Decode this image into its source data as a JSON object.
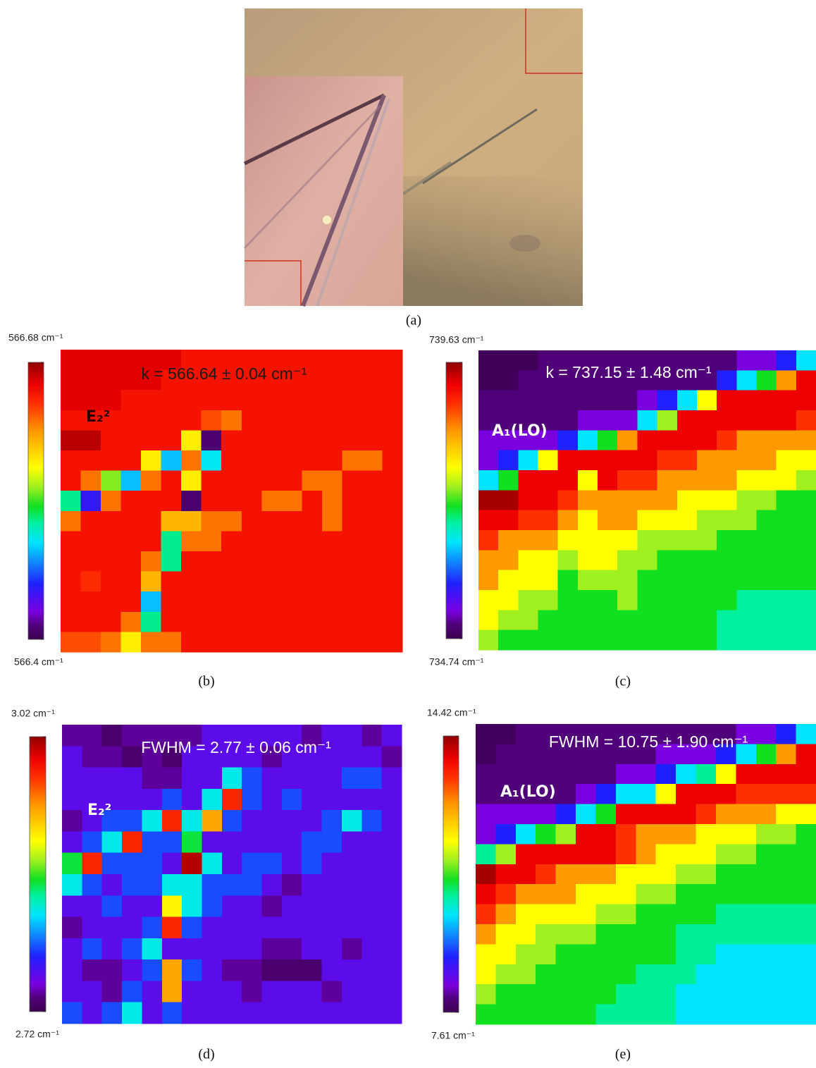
{
  "panels": [
    {
      "label": "(a)"
    },
    {
      "label": "(b)",
      "annotation": "k = 566.64 ± 0.04 cm⁻¹",
      "mode_label": "E₂²",
      "colorbar_ticks": [
        {
          "value": 566.4,
          "label": "566.4 cm⁻¹"
        },
        {
          "value": 566.68,
          "label": "566.68 cm⁻¹"
        }
      ],
      "values": [
        [
          566.66,
          566.66,
          566.66,
          566.66,
          566.66,
          566.66,
          566.65,
          566.65,
          566.65,
          566.65,
          566.65,
          566.65,
          566.65,
          566.65,
          566.65,
          566.65,
          566.65
        ],
        [
          566.66,
          566.66,
          566.66,
          566.66,
          566.66,
          566.65,
          566.65,
          566.65,
          566.65,
          566.65,
          566.65,
          566.65,
          566.65,
          566.65,
          566.65,
          566.65,
          566.65
        ],
        [
          566.66,
          566.66,
          566.66,
          566.65,
          566.65,
          566.65,
          566.65,
          566.65,
          566.65,
          566.65,
          566.65,
          566.65,
          566.65,
          566.65,
          566.65,
          566.65,
          566.65
        ],
        [
          566.65,
          566.65,
          566.65,
          566.65,
          566.65,
          566.65,
          566.65,
          566.63,
          566.62,
          566.65,
          566.65,
          566.65,
          566.65,
          566.65,
          566.65,
          566.65,
          566.65
        ],
        [
          566.67,
          566.67,
          566.65,
          566.65,
          566.65,
          566.65,
          566.58,
          566.41,
          566.65,
          566.65,
          566.65,
          566.65,
          566.65,
          566.65,
          566.65,
          566.65,
          566.65
        ],
        [
          566.65,
          566.65,
          566.65,
          566.65,
          566.58,
          566.49,
          566.62,
          566.5,
          566.65,
          566.65,
          566.65,
          566.65,
          566.65,
          566.65,
          566.62,
          566.62,
          566.65
        ],
        [
          566.65,
          566.62,
          566.55,
          566.49,
          566.62,
          566.65,
          566.58,
          566.65,
          566.65,
          566.65,
          566.65,
          566.65,
          566.62,
          566.62,
          566.65,
          566.65,
          566.65
        ],
        [
          566.52,
          566.45,
          566.62,
          566.65,
          566.65,
          566.65,
          566.41,
          566.65,
          566.65,
          566.65,
          566.62,
          566.62,
          566.65,
          566.62,
          566.65,
          566.65,
          566.65
        ],
        [
          566.62,
          566.65,
          566.65,
          566.65,
          566.65,
          566.6,
          566.6,
          566.62,
          566.62,
          566.65,
          566.65,
          566.65,
          566.65,
          566.62,
          566.65,
          566.65,
          566.65
        ],
        [
          566.65,
          566.65,
          566.65,
          566.65,
          566.65,
          566.52,
          566.62,
          566.62,
          566.65,
          566.65,
          566.65,
          566.65,
          566.65,
          566.65,
          566.65,
          566.65,
          566.65
        ],
        [
          566.65,
          566.65,
          566.65,
          566.65,
          566.62,
          566.52,
          566.65,
          566.65,
          566.65,
          566.65,
          566.65,
          566.65,
          566.65,
          566.65,
          566.65,
          566.65,
          566.65
        ],
        [
          566.65,
          566.64,
          566.65,
          566.65,
          566.6,
          566.65,
          566.65,
          566.65,
          566.65,
          566.65,
          566.65,
          566.65,
          566.65,
          566.65,
          566.65,
          566.65,
          566.65
        ],
        [
          566.65,
          566.65,
          566.65,
          566.65,
          566.49,
          566.65,
          566.65,
          566.65,
          566.65,
          566.65,
          566.65,
          566.65,
          566.65,
          566.65,
          566.65,
          566.65,
          566.65
        ],
        [
          566.65,
          566.65,
          566.65,
          566.62,
          566.52,
          566.65,
          566.65,
          566.65,
          566.65,
          566.65,
          566.65,
          566.65,
          566.65,
          566.65,
          566.65,
          566.65,
          566.65
        ],
        [
          566.63,
          566.63,
          566.62,
          566.58,
          566.62,
          566.62,
          566.65,
          566.65,
          566.65,
          566.65,
          566.65,
          566.65,
          566.65,
          566.65,
          566.65,
          566.65,
          566.65
        ]
      ]
    },
    {
      "label": "(c)",
      "annotation": "k = 737.15 ± 1.48 cm⁻¹",
      "mode_label": "A₁(LO)",
      "colorbar_ticks": [
        {
          "value": 734.74,
          "label": "734.74 cm⁻¹"
        },
        {
          "value": 739.63,
          "label": "739.63 cm⁻¹"
        }
      ],
      "values": [
        [
          734.8,
          734.8,
          734.8,
          734.98,
          734.98,
          734.98,
          734.98,
          734.98,
          734.98,
          734.98,
          734.98,
          734.98,
          734.98,
          735.23,
          735.23,
          735.72,
          736.45
        ],
        [
          734.8,
          734.8,
          734.98,
          734.98,
          734.98,
          734.98,
          734.98,
          734.98,
          734.98,
          734.98,
          734.98,
          734.98,
          735.72,
          736.45,
          737.09,
          738.41,
          739.24
        ],
        [
          734.98,
          734.98,
          734.98,
          734.98,
          734.98,
          734.98,
          734.98,
          734.98,
          735.23,
          735.72,
          736.45,
          737.77,
          739.24,
          739.24,
          739.24,
          739.24,
          739.24
        ],
        [
          734.98,
          734.98,
          734.98,
          734.98,
          734.98,
          735.23,
          735.23,
          735.23,
          736.45,
          737.43,
          739.24,
          739.24,
          739.24,
          739.24,
          739.24,
          739.24,
          738.9
        ],
        [
          735.23,
          735.23,
          735.23,
          735.23,
          735.72,
          736.45,
          737.09,
          738.41,
          739.24,
          739.24,
          739.24,
          739.24,
          738.9,
          738.41,
          738.41,
          738.41,
          738.41
        ],
        [
          735.23,
          735.72,
          736.45,
          737.77,
          739.24,
          739.24,
          739.24,
          739.24,
          739.24,
          738.9,
          738.9,
          738.41,
          738.41,
          738.41,
          738.41,
          737.77,
          737.77
        ],
        [
          736.45,
          737.09,
          739.24,
          739.24,
          739.24,
          737.77,
          739.24,
          738.9,
          738.9,
          738.41,
          738.41,
          738.41,
          738.41,
          737.77,
          737.77,
          737.77,
          737.43
        ],
        [
          739.53,
          739.53,
          739.24,
          739.24,
          738.9,
          738.41,
          738.41,
          738.41,
          738.41,
          738.41,
          737.77,
          737.77,
          737.77,
          737.43,
          737.43,
          737.09,
          737.09
        ],
        [
          739.24,
          739.24,
          738.9,
          738.9,
          738.41,
          737.77,
          738.41,
          738.41,
          737.77,
          737.77,
          737.77,
          737.43,
          737.43,
          737.43,
          737.09,
          737.09,
          737.09
        ],
        [
          738.9,
          738.41,
          738.41,
          738.41,
          737.77,
          737.77,
          737.77,
          737.77,
          737.43,
          737.43,
          737.43,
          737.43,
          737.09,
          737.09,
          737.09,
          737.09,
          737.09
        ],
        [
          738.41,
          738.41,
          737.77,
          737.77,
          737.43,
          737.77,
          737.77,
          737.43,
          737.43,
          737.09,
          737.09,
          737.09,
          737.09,
          737.09,
          737.09,
          737.09,
          737.09
        ],
        [
          738.41,
          737.77,
          737.77,
          737.77,
          737.09,
          737.43,
          737.43,
          737.43,
          737.09,
          737.09,
          737.09,
          737.09,
          737.09,
          737.09,
          737.09,
          737.09,
          737.09
        ],
        [
          737.77,
          737.77,
          737.43,
          737.43,
          737.09,
          737.09,
          737.09,
          737.43,
          737.09,
          737.09,
          737.09,
          737.09,
          737.09,
          736.8,
          736.8,
          736.8,
          736.8
        ],
        [
          737.77,
          737.43,
          737.43,
          737.09,
          737.09,
          737.09,
          737.09,
          737.09,
          737.09,
          737.09,
          737.09,
          737.09,
          736.8,
          736.8,
          736.8,
          736.8,
          736.8
        ],
        [
          737.43,
          737.09,
          737.09,
          737.09,
          737.09,
          737.09,
          737.09,
          737.09,
          737.09,
          737.09,
          737.09,
          737.09,
          736.8,
          736.8,
          736.8,
          736.8,
          736.8
        ]
      ]
    },
    {
      "label": "(d)",
      "annotation": "FWHM = 2.77 ± 0.06 cm⁻¹",
      "mode_label": "E₂²",
      "colorbar_ticks": [
        {
          "value": 2.72,
          "label": "2.72 cm⁻¹"
        },
        {
          "value": 3.02,
          "label": "3.02 cm⁻¹"
        }
      ],
      "values": [
        [
          2.74,
          2.74,
          2.73,
          2.74,
          2.74,
          2.74,
          2.74,
          2.76,
          2.76,
          2.76,
          2.76,
          2.76,
          2.74,
          2.76,
          2.76,
          2.74,
          2.76
        ],
        [
          2.76,
          2.74,
          2.74,
          2.73,
          2.74,
          2.73,
          2.76,
          2.76,
          2.76,
          2.76,
          2.74,
          2.76,
          2.76,
          2.76,
          2.76,
          2.76,
          2.74
        ],
        [
          2.76,
          2.76,
          2.76,
          2.76,
          2.74,
          2.74,
          2.76,
          2.76,
          2.83,
          2.79,
          2.76,
          2.76,
          2.76,
          2.76,
          2.79,
          2.79,
          2.76
        ],
        [
          2.76,
          2.76,
          2.76,
          2.76,
          2.76,
          2.79,
          2.76,
          2.83,
          2.98,
          2.79,
          2.76,
          2.79,
          2.76,
          2.76,
          2.76,
          2.76,
          2.76
        ],
        [
          2.74,
          2.76,
          2.79,
          2.79,
          2.83,
          2.98,
          2.83,
          2.94,
          2.79,
          2.76,
          2.76,
          2.76,
          2.76,
          2.79,
          2.83,
          2.79,
          2.76
        ],
        [
          2.76,
          2.79,
          2.83,
          2.98,
          2.79,
          2.79,
          2.86,
          2.76,
          2.76,
          2.76,
          2.76,
          2.76,
          2.79,
          2.79,
          2.76,
          2.76,
          2.76
        ],
        [
          2.86,
          2.98,
          2.79,
          2.79,
          2.79,
          2.76,
          3.01,
          2.83,
          2.76,
          2.79,
          2.79,
          2.76,
          2.79,
          2.76,
          2.76,
          2.76,
          2.76
        ],
        [
          2.83,
          2.79,
          2.76,
          2.79,
          2.79,
          2.83,
          2.83,
          2.79,
          2.79,
          2.79,
          2.76,
          2.74,
          2.76,
          2.76,
          2.76,
          2.76,
          2.76
        ],
        [
          2.76,
          2.76,
          2.79,
          2.76,
          2.76,
          2.91,
          2.83,
          2.79,
          2.76,
          2.76,
          2.74,
          2.76,
          2.76,
          2.76,
          2.76,
          2.76,
          2.76
        ],
        [
          2.74,
          2.76,
          2.76,
          2.76,
          2.79,
          2.98,
          2.79,
          2.76,
          2.76,
          2.76,
          2.76,
          2.76,
          2.76,
          2.76,
          2.76,
          2.76,
          2.76
        ],
        [
          2.76,
          2.79,
          2.76,
          2.79,
          2.83,
          2.76,
          2.76,
          2.76,
          2.76,
          2.76,
          2.74,
          2.74,
          2.76,
          2.76,
          2.74,
          2.76,
          2.76
        ],
        [
          2.76,
          2.74,
          2.74,
          2.76,
          2.79,
          2.94,
          2.79,
          2.76,
          2.74,
          2.74,
          2.73,
          2.73,
          2.73,
          2.76,
          2.76,
          2.76,
          2.76
        ],
        [
          2.76,
          2.76,
          2.74,
          2.79,
          2.76,
          2.94,
          2.76,
          2.76,
          2.76,
          2.74,
          2.76,
          2.76,
          2.76,
          2.74,
          2.76,
          2.76,
          2.76
        ],
        [
          2.79,
          2.76,
          2.79,
          2.83,
          2.76,
          2.79,
          2.76,
          2.76,
          2.76,
          2.76,
          2.76,
          2.76,
          2.76,
          2.76,
          2.76,
          2.76,
          2.76
        ]
      ]
    },
    {
      "label": "(e)",
      "annotation": "FWHM = 10.75 ± 1.90 cm⁻¹",
      "mode_label": "A₁(LO)",
      "colorbar_ticks": [
        {
          "value": 7.61,
          "label": "7.61 cm⁻¹"
        },
        {
          "value": 14.42,
          "label": "14.42 cm⁻¹"
        }
      ],
      "values": [
        [
          7.7,
          7.7,
          7.95,
          7.95,
          7.95,
          7.95,
          7.95,
          7.95,
          7.95,
          7.95,
          7.95,
          7.95,
          7.95,
          8.3,
          8.3,
          8.97,
          9.99
        ],
        [
          7.7,
          7.95,
          7.95,
          7.95,
          7.95,
          7.95,
          7.95,
          7.95,
          7.95,
          8.3,
          8.3,
          8.3,
          8.97,
          9.99,
          10.88,
          12.72,
          13.88
        ],
        [
          7.95,
          7.95,
          7.95,
          7.95,
          7.95,
          7.95,
          7.95,
          8.3,
          8.3,
          8.97,
          9.99,
          10.5,
          11.83,
          13.88,
          13.88,
          13.88,
          13.88
        ],
        [
          7.95,
          7.95,
          7.95,
          7.95,
          7.95,
          8.3,
          8.97,
          9.99,
          9.99,
          11.83,
          13.88,
          13.88,
          13.88,
          13.4,
          13.4,
          13.4,
          13.4
        ],
        [
          8.3,
          8.3,
          8.3,
          8.3,
          8.97,
          9.99,
          10.88,
          13.88,
          13.88,
          13.88,
          13.88,
          13.4,
          12.72,
          12.72,
          12.72,
          11.83,
          11.83
        ],
        [
          8.3,
          8.97,
          9.99,
          10.88,
          11.36,
          13.88,
          13.88,
          13.4,
          12.72,
          12.72,
          12.72,
          11.83,
          11.83,
          11.83,
          11.36,
          11.36,
          10.88
        ],
        [
          10.5,
          11.36,
          13.88,
          13.88,
          13.88,
          13.88,
          13.88,
          13.4,
          12.72,
          11.83,
          11.83,
          11.83,
          11.36,
          11.36,
          10.88,
          10.88,
          10.88
        ],
        [
          14.3,
          13.88,
          13.88,
          13.4,
          12.72,
          12.72,
          12.72,
          11.83,
          11.83,
          11.83,
          11.36,
          11.36,
          10.88,
          10.88,
          10.88,
          10.88,
          10.88
        ],
        [
          13.88,
          13.4,
          12.72,
          12.72,
          12.72,
          11.83,
          11.83,
          11.83,
          11.36,
          11.36,
          10.88,
          10.88,
          10.88,
          10.88,
          10.88,
          10.88,
          10.88
        ],
        [
          13.4,
          12.72,
          11.83,
          11.83,
          11.83,
          11.83,
          11.36,
          11.36,
          10.88,
          10.88,
          10.88,
          10.88,
          10.5,
          10.5,
          10.5,
          10.5,
          10.5
        ],
        [
          12.72,
          11.83,
          11.83,
          11.36,
          11.36,
          11.36,
          10.88,
          10.88,
          10.88,
          10.88,
          10.5,
          10.5,
          10.5,
          10.5,
          10.5,
          10.5,
          10.5
        ],
        [
          11.83,
          11.83,
          11.36,
          11.36,
          10.88,
          10.88,
          10.88,
          10.88,
          10.88,
          10.88,
          10.5,
          10.5,
          9.99,
          9.99,
          9.99,
          9.99,
          9.99
        ],
        [
          11.83,
          11.36,
          11.36,
          10.88,
          10.88,
          10.88,
          10.88,
          10.88,
          10.5,
          10.5,
          10.5,
          9.99,
          9.99,
          9.99,
          9.99,
          9.99,
          9.99
        ],
        [
          11.36,
          10.88,
          10.88,
          10.88,
          10.88,
          10.88,
          10.88,
          10.5,
          10.5,
          10.5,
          9.99,
          9.99,
          9.99,
          9.99,
          9.99,
          9.99,
          9.99
        ],
        [
          10.88,
          10.88,
          10.88,
          10.88,
          10.88,
          10.88,
          10.5,
          10.5,
          10.5,
          10.5,
          9.99,
          9.99,
          9.99,
          9.99,
          9.99,
          9.99,
          9.99
        ]
      ]
    }
  ]
}
